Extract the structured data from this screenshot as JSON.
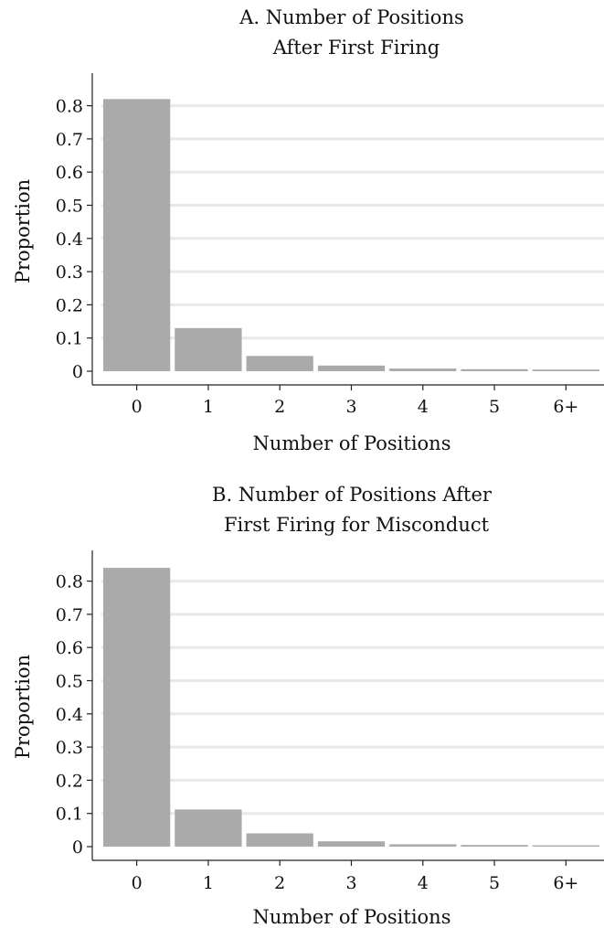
{
  "chart_data": [
    {
      "type": "bar",
      "title_lines": [
        "A. Number of Positions",
        "After First Firing"
      ],
      "xlabel": "Number of Positions",
      "ylabel": "Proportion",
      "categories": [
        "0",
        "1",
        "2",
        "3",
        "4",
        "5",
        "6+"
      ],
      "values": [
        0.82,
        0.13,
        0.046,
        0.017,
        0.008,
        0.006,
        0.005
      ],
      "yticks": [
        "0",
        "0.1",
        "0.2",
        "0.3",
        "0.4",
        "0.5",
        "0.6",
        "0.7",
        "0.8"
      ],
      "ylim": [
        0,
        0.88
      ],
      "grid": true,
      "bar_color": "#aaaaaa"
    },
    {
      "type": "bar",
      "title_lines": [
        "B. Number of Positions After",
        "First Firing for Misconduct"
      ],
      "xlabel": "Number of Positions",
      "ylabel": "Proportion",
      "categories": [
        "0",
        "1",
        "2",
        "3",
        "4",
        "5",
        "6+"
      ],
      "values": [
        0.84,
        0.112,
        0.04,
        0.016,
        0.007,
        0.005,
        0.004
      ],
      "yticks": [
        "0",
        "0.1",
        "0.2",
        "0.3",
        "0.4",
        "0.5",
        "0.6",
        "0.7",
        "0.8"
      ],
      "ylim": [
        0,
        0.88
      ],
      "grid": true,
      "bar_color": "#aaaaaa"
    }
  ]
}
